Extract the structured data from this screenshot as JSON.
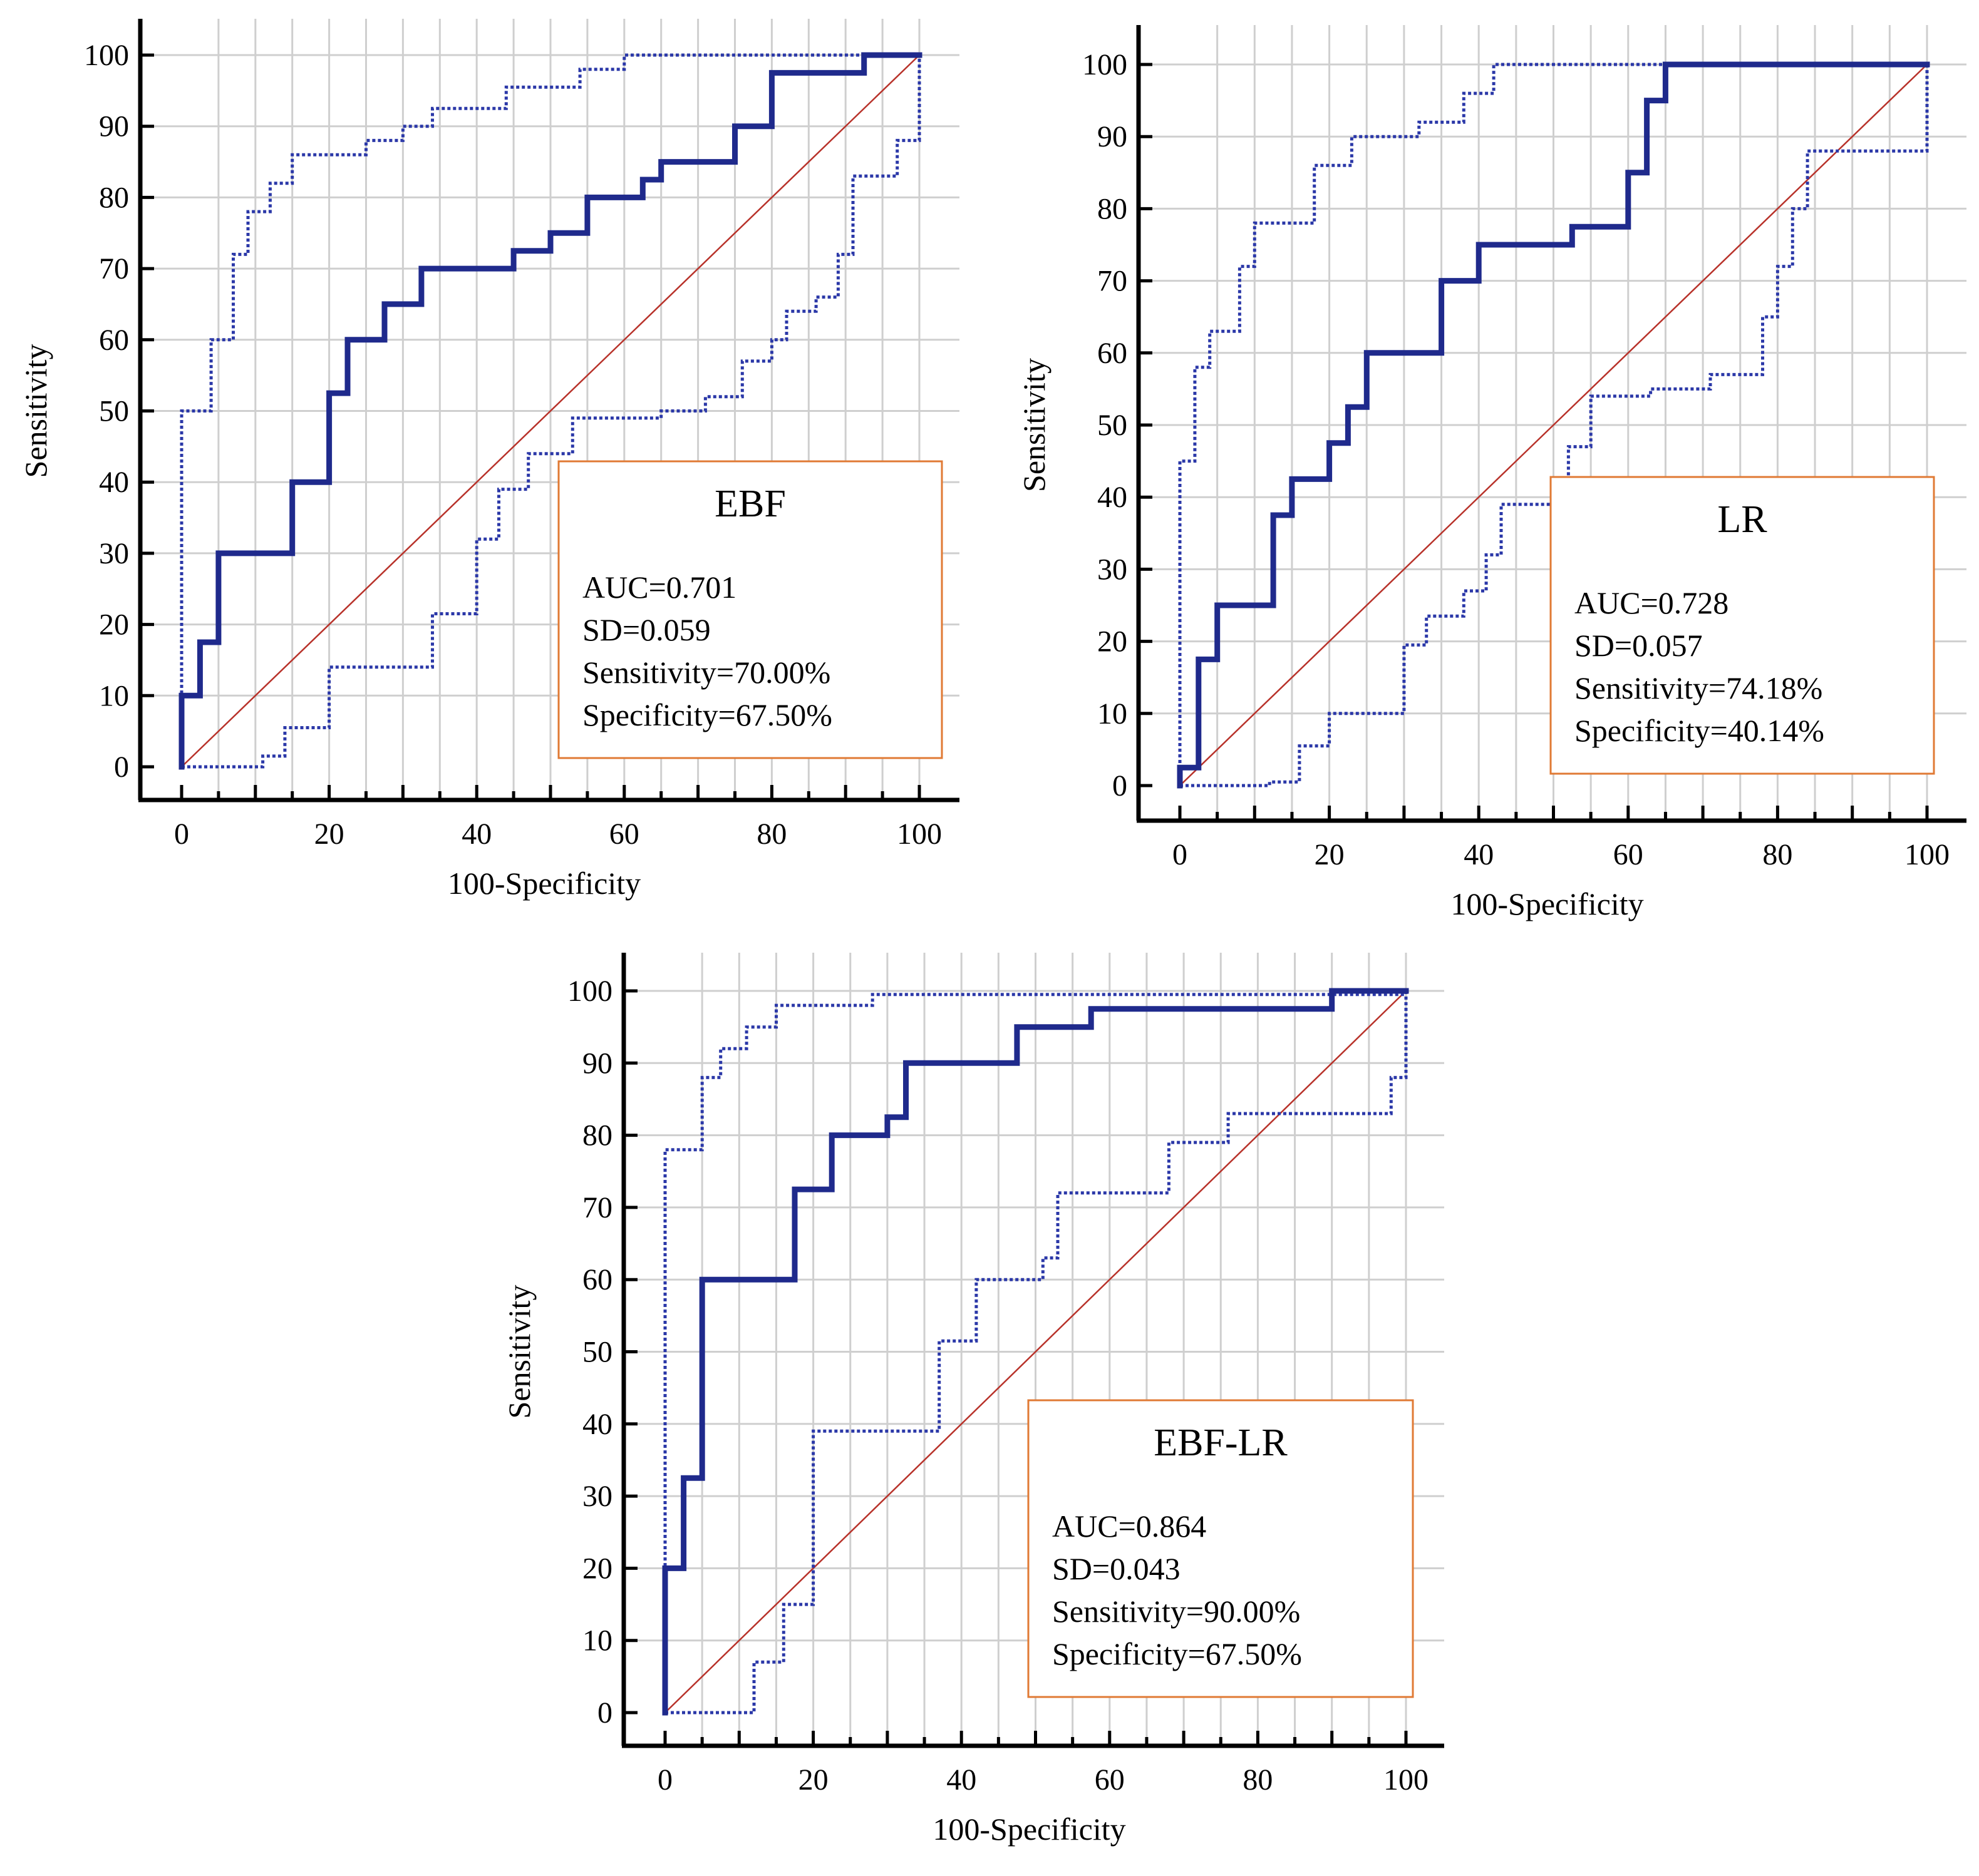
{
  "colors": {
    "roc": "#1f2a8c",
    "ci": "#2b38a8",
    "diagonal": "#b8322a",
    "grid": "#cfcfcf",
    "box_border": "#e07a34"
  },
  "chart_data": [
    {
      "type": "line",
      "title": "EBF",
      "xlabel": "100-Specificity",
      "ylabel": "Sensitivity",
      "xlim": [
        0,
        100
      ],
      "ylim": [
        0,
        100
      ],
      "xticks": [
        "0",
        "20",
        "40",
        "60",
        "80",
        "100"
      ],
      "yticks": [
        "0",
        "10",
        "20",
        "30",
        "40",
        "50",
        "60",
        "70",
        "80",
        "90",
        "100"
      ],
      "grid": true,
      "legend_position": "bottom-right",
      "stats": [
        "AUC=0.701",
        "SD=0.059",
        "Sensitivity=70.00%",
        "Specificity=67.50%"
      ],
      "series": [
        {
          "role": "roc",
          "points": [
            [
              0,
              0
            ],
            [
              0,
              10
            ],
            [
              2.5,
              10
            ],
            [
              2.5,
              17.5
            ],
            [
              5,
              17.5
            ],
            [
              5,
              30
            ],
            [
              15,
              30
            ],
            [
              15,
              40
            ],
            [
              20,
              40
            ],
            [
              20,
              52.5
            ],
            [
              22.5,
              52.5
            ],
            [
              22.5,
              60
            ],
            [
              27.5,
              60
            ],
            [
              27.5,
              65
            ],
            [
              32.5,
              65
            ],
            [
              32.5,
              70
            ],
            [
              45,
              70
            ],
            [
              45,
              72.5
            ],
            [
              50,
              72.5
            ],
            [
              50,
              75
            ],
            [
              55,
              75
            ],
            [
              55,
              80
            ],
            [
              62.5,
              80
            ],
            [
              62.5,
              82.5
            ],
            [
              65,
              82.5
            ],
            [
              65,
              85
            ],
            [
              75,
              85
            ],
            [
              75,
              90
            ],
            [
              80,
              90
            ],
            [
              80,
              97.5
            ],
            [
              92.5,
              97.5
            ],
            [
              92.5,
              100
            ],
            [
              100,
              100
            ]
          ]
        },
        {
          "role": "ci_upper",
          "points": [
            [
              0,
              0
            ],
            [
              0,
              50
            ],
            [
              4,
              50
            ],
            [
              4,
              60
            ],
            [
              7,
              60
            ],
            [
              7,
              72
            ],
            [
              9,
              72
            ],
            [
              9,
              78
            ],
            [
              12,
              78
            ],
            [
              12,
              82
            ],
            [
              15,
              82
            ],
            [
              15,
              86
            ],
            [
              25,
              86
            ],
            [
              25,
              88
            ],
            [
              30,
              88
            ],
            [
              30,
              90
            ],
            [
              34,
              90
            ],
            [
              34,
              92.5
            ],
            [
              44,
              92.5
            ],
            [
              44,
              95.5
            ],
            [
              54,
              95.5
            ],
            [
              54,
              98
            ],
            [
              60,
              98
            ],
            [
              60,
              100
            ],
            [
              100,
              100
            ]
          ]
        },
        {
          "role": "ci_lower",
          "points": [
            [
              0,
              0
            ],
            [
              11,
              0
            ],
            [
              11,
              1.5
            ],
            [
              14,
              1.5
            ],
            [
              14,
              5.5
            ],
            [
              20,
              5.5
            ],
            [
              20,
              14
            ],
            [
              34,
              14
            ],
            [
              34,
              21.5
            ],
            [
              40,
              21.5
            ],
            [
              40,
              32
            ],
            [
              43,
              32
            ],
            [
              43,
              39
            ],
            [
              47,
              39
            ],
            [
              47,
              44
            ],
            [
              53,
              44
            ],
            [
              53,
              49
            ],
            [
              65,
              49
            ],
            [
              65,
              50
            ],
            [
              71,
              50
            ],
            [
              71,
              52
            ],
            [
              76,
              52
            ],
            [
              76,
              57
            ],
            [
              80,
              57
            ],
            [
              80,
              60
            ],
            [
              82,
              60
            ],
            [
              82,
              64
            ],
            [
              86,
              64
            ],
            [
              86,
              66
            ],
            [
              89,
              66
            ],
            [
              89,
              72
            ],
            [
              91,
              72
            ],
            [
              91,
              83
            ],
            [
              97,
              83
            ],
            [
              97,
              88
            ],
            [
              100,
              88
            ],
            [
              100,
              100
            ]
          ]
        }
      ]
    },
    {
      "type": "line",
      "title": "LR",
      "xlabel": "100-Specificity",
      "ylabel": "Sensitivity",
      "xlim": [
        0,
        100
      ],
      "ylim": [
        0,
        100
      ],
      "xticks": [
        "0",
        "20",
        "40",
        "60",
        "80",
        "100"
      ],
      "yticks": [
        "0",
        "10",
        "20",
        "30",
        "40",
        "50",
        "60",
        "70",
        "80",
        "90",
        "100"
      ],
      "grid": true,
      "legend_position": "bottom-right",
      "stats": [
        "AUC=0.728",
        "SD=0.057",
        "Sensitivity=74.18%",
        "Specificity=40.14%"
      ],
      "series": [
        {
          "role": "roc",
          "points": [
            [
              0,
              0
            ],
            [
              0,
              2.5
            ],
            [
              2.5,
              2.5
            ],
            [
              2.5,
              17.5
            ],
            [
              5,
              17.5
            ],
            [
              5,
              25
            ],
            [
              12.5,
              25
            ],
            [
              12.5,
              37.5
            ],
            [
              15,
              37.5
            ],
            [
              15,
              42.5
            ],
            [
              20,
              42.5
            ],
            [
              20,
              47.5
            ],
            [
              22.5,
              47.5
            ],
            [
              22.5,
              52.5
            ],
            [
              25,
              52.5
            ],
            [
              25,
              60
            ],
            [
              35,
              60
            ],
            [
              35,
              70
            ],
            [
              40,
              70
            ],
            [
              40,
              75
            ],
            [
              52.5,
              75
            ],
            [
              52.5,
              77.5
            ],
            [
              60,
              77.5
            ],
            [
              60,
              85
            ],
            [
              62.5,
              85
            ],
            [
              62.5,
              95
            ],
            [
              65,
              95
            ],
            [
              65,
              100
            ],
            [
              100,
              100
            ]
          ]
        },
        {
          "role": "ci_upper",
          "points": [
            [
              0,
              0
            ],
            [
              0,
              45
            ],
            [
              2,
              45
            ],
            [
              2,
              58
            ],
            [
              4,
              58
            ],
            [
              4,
              63
            ],
            [
              8,
              63
            ],
            [
              8,
              72
            ],
            [
              10,
              72
            ],
            [
              10,
              78
            ],
            [
              18,
              78
            ],
            [
              18,
              86
            ],
            [
              23,
              86
            ],
            [
              23,
              90
            ],
            [
              32,
              90
            ],
            [
              32,
              92
            ],
            [
              38,
              92
            ],
            [
              38,
              96
            ],
            [
              42,
              96
            ],
            [
              42,
              100
            ],
            [
              100,
              100
            ]
          ]
        },
        {
          "role": "ci_lower",
          "points": [
            [
              0,
              0
            ],
            [
              12,
              0
            ],
            [
              12,
              0.5
            ],
            [
              16,
              0.5
            ],
            [
              16,
              5.5
            ],
            [
              20,
              5.5
            ],
            [
              20,
              10
            ],
            [
              30,
              10
            ],
            [
              30,
              19.5
            ],
            [
              33,
              19.5
            ],
            [
              33,
              23.5
            ],
            [
              38,
              23.5
            ],
            [
              38,
              27
            ],
            [
              41,
              27
            ],
            [
              41,
              32
            ],
            [
              43,
              32
            ],
            [
              43,
              39
            ],
            [
              52,
              39
            ],
            [
              52,
              47
            ],
            [
              55,
              47
            ],
            [
              55,
              54
            ],
            [
              63,
              54
            ],
            [
              63,
              55
            ],
            [
              71,
              55
            ],
            [
              71,
              57
            ],
            [
              78,
              57
            ],
            [
              78,
              65
            ],
            [
              80,
              65
            ],
            [
              80,
              72
            ],
            [
              82,
              72
            ],
            [
              82,
              80
            ],
            [
              84,
              80
            ],
            [
              84,
              88
            ],
            [
              100,
              88
            ],
            [
              100,
              100
            ]
          ]
        }
      ]
    },
    {
      "type": "line",
      "title": "EBF-LR",
      "xlabel": "100-Specificity",
      "ylabel": "Sensitivity",
      "xlim": [
        0,
        100
      ],
      "ylim": [
        0,
        100
      ],
      "xticks": [
        "0",
        "20",
        "40",
        "60",
        "80",
        "100"
      ],
      "yticks": [
        "0",
        "10",
        "20",
        "30",
        "40",
        "50",
        "60",
        "70",
        "80",
        "90",
        "100"
      ],
      "grid": true,
      "legend_position": "bottom-right",
      "stats": [
        "AUC=0.864",
        "SD=0.043",
        "Sensitivity=90.00%",
        "Specificity=67.50%"
      ],
      "series": [
        {
          "role": "roc",
          "points": [
            [
              0,
              0
            ],
            [
              0,
              20
            ],
            [
              2.5,
              20
            ],
            [
              2.5,
              32.5
            ],
            [
              5,
              32.5
            ],
            [
              5,
              60
            ],
            [
              17.5,
              60
            ],
            [
              17.5,
              72.5
            ],
            [
              22.5,
              72.5
            ],
            [
              22.5,
              80
            ],
            [
              30,
              80
            ],
            [
              30,
              82.5
            ],
            [
              32.5,
              82.5
            ],
            [
              32.5,
              90
            ],
            [
              47.5,
              90
            ],
            [
              47.5,
              95
            ],
            [
              57.5,
              95
            ],
            [
              57.5,
              97.5
            ],
            [
              90,
              97.5
            ],
            [
              90,
              100
            ],
            [
              100,
              100
            ]
          ]
        },
        {
          "role": "ci_upper",
          "points": [
            [
              0,
              0
            ],
            [
              0,
              78
            ],
            [
              5,
              78
            ],
            [
              5,
              88
            ],
            [
              7.5,
              88
            ],
            [
              7.5,
              92
            ],
            [
              11,
              92
            ],
            [
              11,
              95
            ],
            [
              15,
              95
            ],
            [
              15,
              98
            ],
            [
              28,
              98
            ],
            [
              28,
              99.5
            ],
            [
              100,
              99.5
            ],
            [
              100,
              100
            ]
          ]
        },
        {
          "role": "ci_lower",
          "points": [
            [
              0,
              0
            ],
            [
              12,
              0
            ],
            [
              12,
              7
            ],
            [
              16,
              7
            ],
            [
              16,
              15
            ],
            [
              20,
              15
            ],
            [
              20,
              39
            ],
            [
              37,
              39
            ],
            [
              37,
              51.5
            ],
            [
              42,
              51.5
            ],
            [
              42,
              60
            ],
            [
              51,
              60
            ],
            [
              51,
              63
            ],
            [
              53,
              63
            ],
            [
              53,
              72
            ],
            [
              68,
              72
            ],
            [
              68,
              79
            ],
            [
              76,
              79
            ],
            [
              76,
              83
            ],
            [
              98,
              83
            ],
            [
              98,
              88
            ],
            [
              100,
              88
            ],
            [
              100,
              100
            ]
          ]
        }
      ]
    }
  ]
}
